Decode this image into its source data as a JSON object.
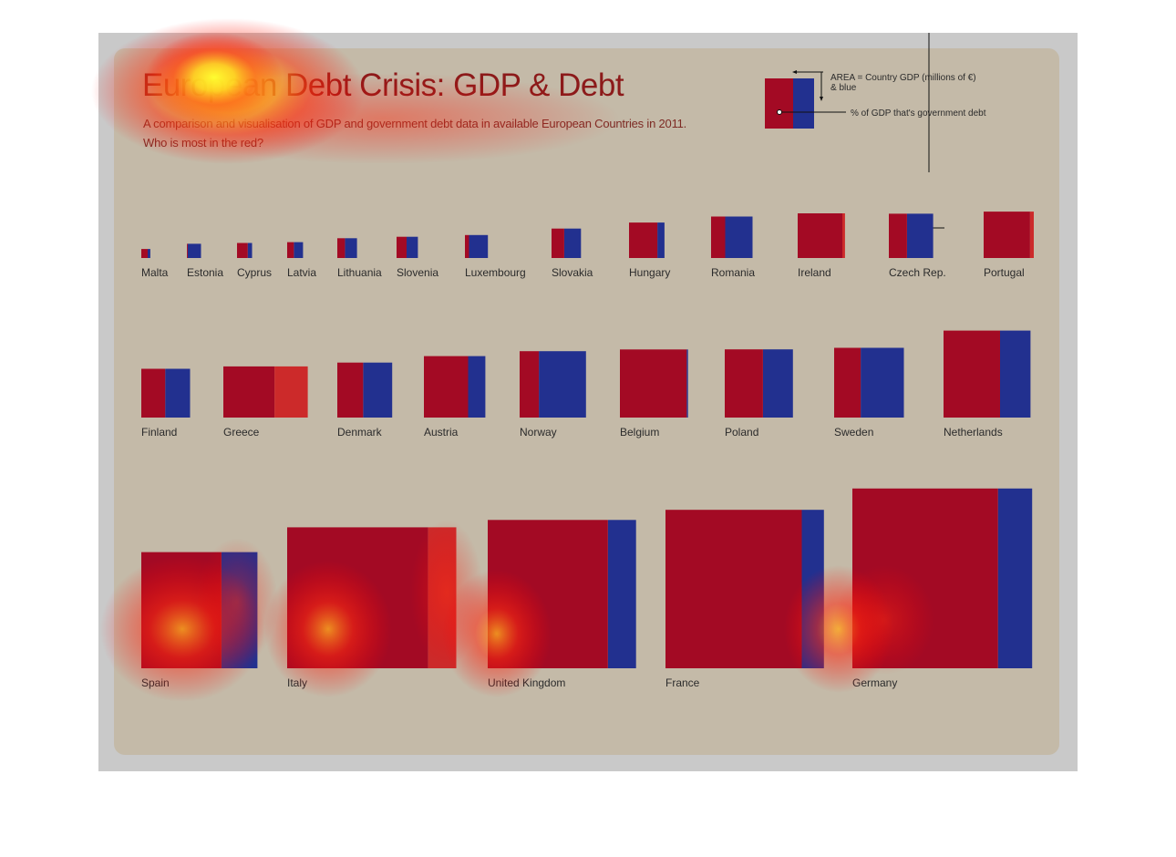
{
  "title": "European Debt Crisis: GDP & Debt",
  "subtitle_line1": "A comparison and visualisation of GDP and government debt data in available European Countries in 2011.",
  "subtitle_line2": "Who is most in the red?",
  "legend": {
    "area_line1": "AREA = Country GDP (millions of  €)",
    "area_line2": "& blue",
    "debt_label": "% of GDP that's government debt"
  },
  "colors": {
    "debt": "#a30a24",
    "gdp": "#22308f",
    "over": "#cc2a2a",
    "panel": "#c4baa8"
  },
  "chart_data": {
    "type": "bar",
    "encoding": "square area = GDP; red share = government debt as % of GDP",
    "countries": [
      {
        "name": "Malta",
        "gdp": 6500,
        "debt_pct": 71
      },
      {
        "name": "Estonia",
        "gdp": 16000,
        "debt_pct": 6
      },
      {
        "name": "Cyprus",
        "gdp": 18000,
        "debt_pct": 71
      },
      {
        "name": "Latvia",
        "gdp": 20000,
        "debt_pct": 42
      },
      {
        "name": "Lithuania",
        "gdp": 31000,
        "debt_pct": 39
      },
      {
        "name": "Slovenia",
        "gdp": 36000,
        "debt_pct": 47
      },
      {
        "name": "Luxembourg",
        "gdp": 42000,
        "debt_pct": 18
      },
      {
        "name": "Slovakia",
        "gdp": 69000,
        "debt_pct": 43
      },
      {
        "name": "Hungary",
        "gdp": 100000,
        "debt_pct": 80
      },
      {
        "name": "Romania",
        "gdp": 137000,
        "debt_pct": 34
      },
      {
        "name": "Ireland",
        "gdp": 159000,
        "debt_pct": 106
      },
      {
        "name": "Czech Rep.",
        "gdp": 156000,
        "debt_pct": 41
      },
      {
        "name": "Portugal",
        "gdp": 171000,
        "debt_pct": 108
      },
      {
        "name": "Finland",
        "gdp": 189000,
        "debt_pct": 49
      },
      {
        "name": "Greece",
        "gdp": 208000,
        "debt_pct": 165
      },
      {
        "name": "Denmark",
        "gdp": 240000,
        "debt_pct": 47
      },
      {
        "name": "Austria",
        "gdp": 300000,
        "debt_pct": 72
      },
      {
        "name": "Norway",
        "gdp": 350000,
        "debt_pct": 29
      },
      {
        "name": "Belgium",
        "gdp": 369000,
        "debt_pct": 98
      },
      {
        "name": "Poland",
        "gdp": 370000,
        "debt_pct": 56
      },
      {
        "name": "Sweden",
        "gdp": 387000,
        "debt_pct": 38
      },
      {
        "name": "Netherlands",
        "gdp": 602000,
        "debt_pct": 65
      },
      {
        "name": "Spain",
        "gdp": 1073000,
        "debt_pct": 69
      },
      {
        "name": "Italy",
        "gdp": 1580000,
        "debt_pct": 120
      },
      {
        "name": "United Kingdom",
        "gdp": 1750000,
        "debt_pct": 81
      },
      {
        "name": "France",
        "gdp": 1997000,
        "debt_pct": 86
      },
      {
        "name": "Germany",
        "gdp": 2570000,
        "debt_pct": 81
      }
    ]
  }
}
